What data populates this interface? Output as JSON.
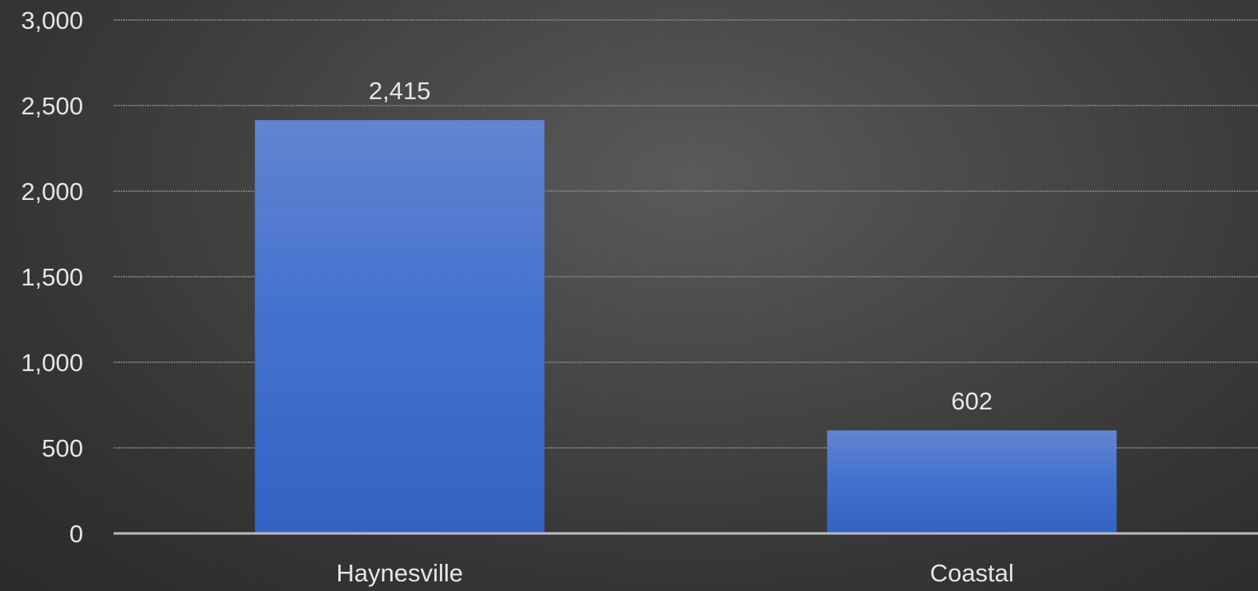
{
  "chart_data": {
    "type": "bar",
    "categories": [
      "Haynesville",
      "Coastal"
    ],
    "values": [
      2415,
      602
    ],
    "data_labels": [
      "2,415",
      "602"
    ],
    "y_ticks": [
      0,
      500,
      1000,
      1500,
      2000,
      2500,
      3000
    ],
    "y_tick_labels": [
      "0",
      "500",
      "1,000",
      "1,500",
      "2,000",
      "2,500",
      "3,000"
    ],
    "ylim": [
      0,
      3000
    ],
    "grid": true,
    "legend": "none",
    "colors": {
      "bar_top": "#6384d0",
      "bar_bottom": "#3263c3",
      "gridline": "#8a8a8a",
      "baseline": "#bdbdbd",
      "text": "#e6e6e6"
    }
  }
}
